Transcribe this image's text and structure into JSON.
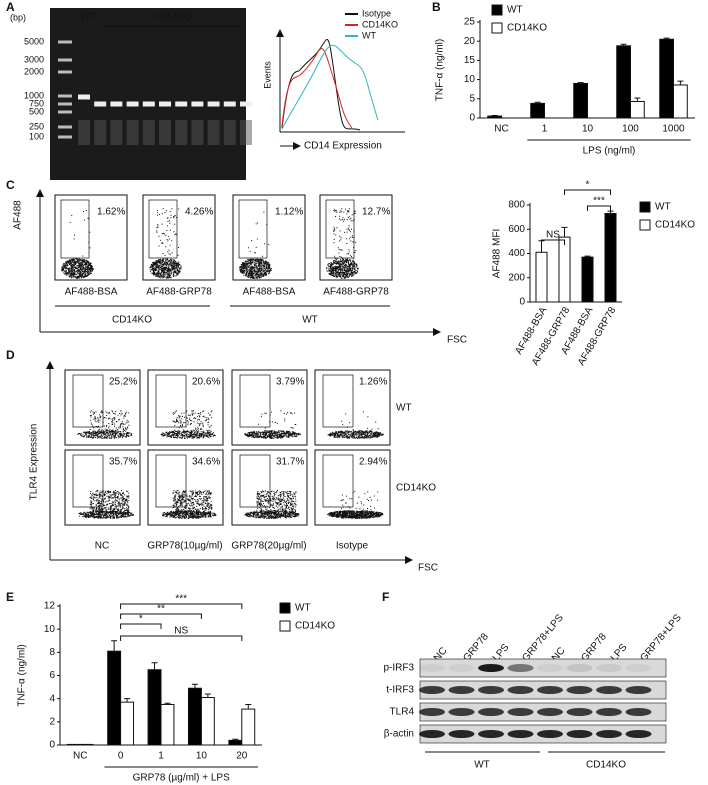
{
  "panel_labels": [
    "A",
    "B",
    "C",
    "D",
    "E",
    "F"
  ],
  "gel": {
    "unit": "(bp)",
    "ladder": [
      "5000",
      "3000",
      "2000",
      "1000",
      "750",
      "500",
      "250",
      "100"
    ],
    "lanes": [
      "WT",
      "CD14KO"
    ]
  },
  "histogram": {
    "legend": [
      "Isotype",
      "CD14KO",
      "WT"
    ],
    "y_label": "Events",
    "x_label": "CD14 Expression"
  },
  "binding_flow": {
    "percentages": [
      "1.62%",
      "4.26%",
      "1.12%",
      "12.7%"
    ],
    "x_labels": [
      "AF488-BSA",
      "AF488-GRP78",
      "AF488-BSA",
      "AF488-GRP78"
    ],
    "groups": [
      "CD14KO",
      "WT"
    ],
    "y_label": "AF488",
    "x_label": "FSC"
  },
  "tlr4_flow": {
    "rows": [
      {
        "name": "WT",
        "percentages": [
          "25.2%",
          "20.6%",
          "3.79%",
          "1.26%"
        ]
      },
      {
        "name": "CD14KO",
        "percentages": [
          "35.7%",
          "34.6%",
          "31.7%",
          "2.94%"
        ]
      }
    ],
    "columns": [
      "NC",
      "GRP78(10µg/ml)",
      "GRP78(20µg/ml)",
      "Isotype"
    ],
    "y_label": "TLR4 Expression",
    "x_label": "FSC"
  },
  "western_blot": {
    "lanes": [
      "NC",
      "GRP78",
      "LPS",
      "GRP78+LPS",
      "NC",
      "GRP78",
      "LPS",
      "GRP78+LPS"
    ],
    "proteins": [
      "p-IRF3",
      "t-IRF3",
      "TLR4",
      "β-actin"
    ],
    "groups": [
      "WT",
      "CD14KO"
    ]
  },
  "chart_data": [
    {
      "type": "bar",
      "y_label": "TNF-α (ng/ml)",
      "x_label": "LPS (ng/ml)",
      "categories": [
        "NC",
        "1",
        "10",
        "100",
        "1000"
      ],
      "series": [
        {
          "name": "WT",
          "color": "#000000",
          "values": [
            0.5,
            3.8,
            9,
            18.8,
            20.5
          ],
          "errors": [
            0.15,
            0.3,
            0.2,
            0.4,
            0.3
          ]
        },
        {
          "name": "CD14KO",
          "color": "#ffffff",
          "values": [
            0,
            0,
            0,
            4.3,
            8.6
          ],
          "errors": [
            0,
            0,
            0,
            0.9,
            1
          ]
        }
      ],
      "ylim": [
        0,
        25
      ],
      "yticks": [
        0,
        5,
        10,
        15,
        20,
        25
      ],
      "legend": "top-left"
    },
    {
      "type": "bar",
      "y_label": "AF488 MFI",
      "categories": [
        "AF488-BSA",
        "AF488-GRP78",
        "AF488-BSA",
        "AF488-GRP78"
      ],
      "series": [
        {
          "name": "WT",
          "color": "#000000",
          "values": [
            null,
            null,
            370,
            730
          ],
          "errors": [
            null,
            null,
            8,
            20
          ]
        },
        {
          "name": "CD14KO",
          "color": "#ffffff",
          "values": [
            410,
            535,
            null,
            null
          ],
          "errors": [
            95,
            80,
            null,
            null
          ]
        }
      ],
      "ylim": [
        0,
        800
      ],
      "yticks": [
        0,
        200,
        400,
        600,
        800
      ],
      "legend": "right",
      "annotations": [
        "NS",
        "*",
        "***"
      ]
    },
    {
      "type": "bar",
      "y_label": "TNF-α (ng/ml)",
      "x_label": "GRP78 (µg/ml) + LPS",
      "categories": [
        "NC",
        "0",
        "1",
        "10",
        "20"
      ],
      "series": [
        {
          "name": "WT",
          "color": "#000000",
          "values": [
            0.05,
            8.1,
            6.5,
            4.9,
            0.4
          ],
          "errors": [
            0,
            0.9,
            0.6,
            0.35,
            0.1
          ]
        },
        {
          "name": "CD14KO",
          "color": "#ffffff",
          "values": [
            0.05,
            3.7,
            3.5,
            4.1,
            3.1
          ],
          "errors": [
            0,
            0.3,
            0.1,
            0.3,
            0.4
          ]
        }
      ],
      "ylim": [
        0,
        12
      ],
      "yticks": [
        0,
        2,
        4,
        6,
        8,
        10,
        12
      ],
      "legend": "right",
      "annotations": [
        "***",
        "**",
        "*",
        "NS"
      ]
    }
  ]
}
